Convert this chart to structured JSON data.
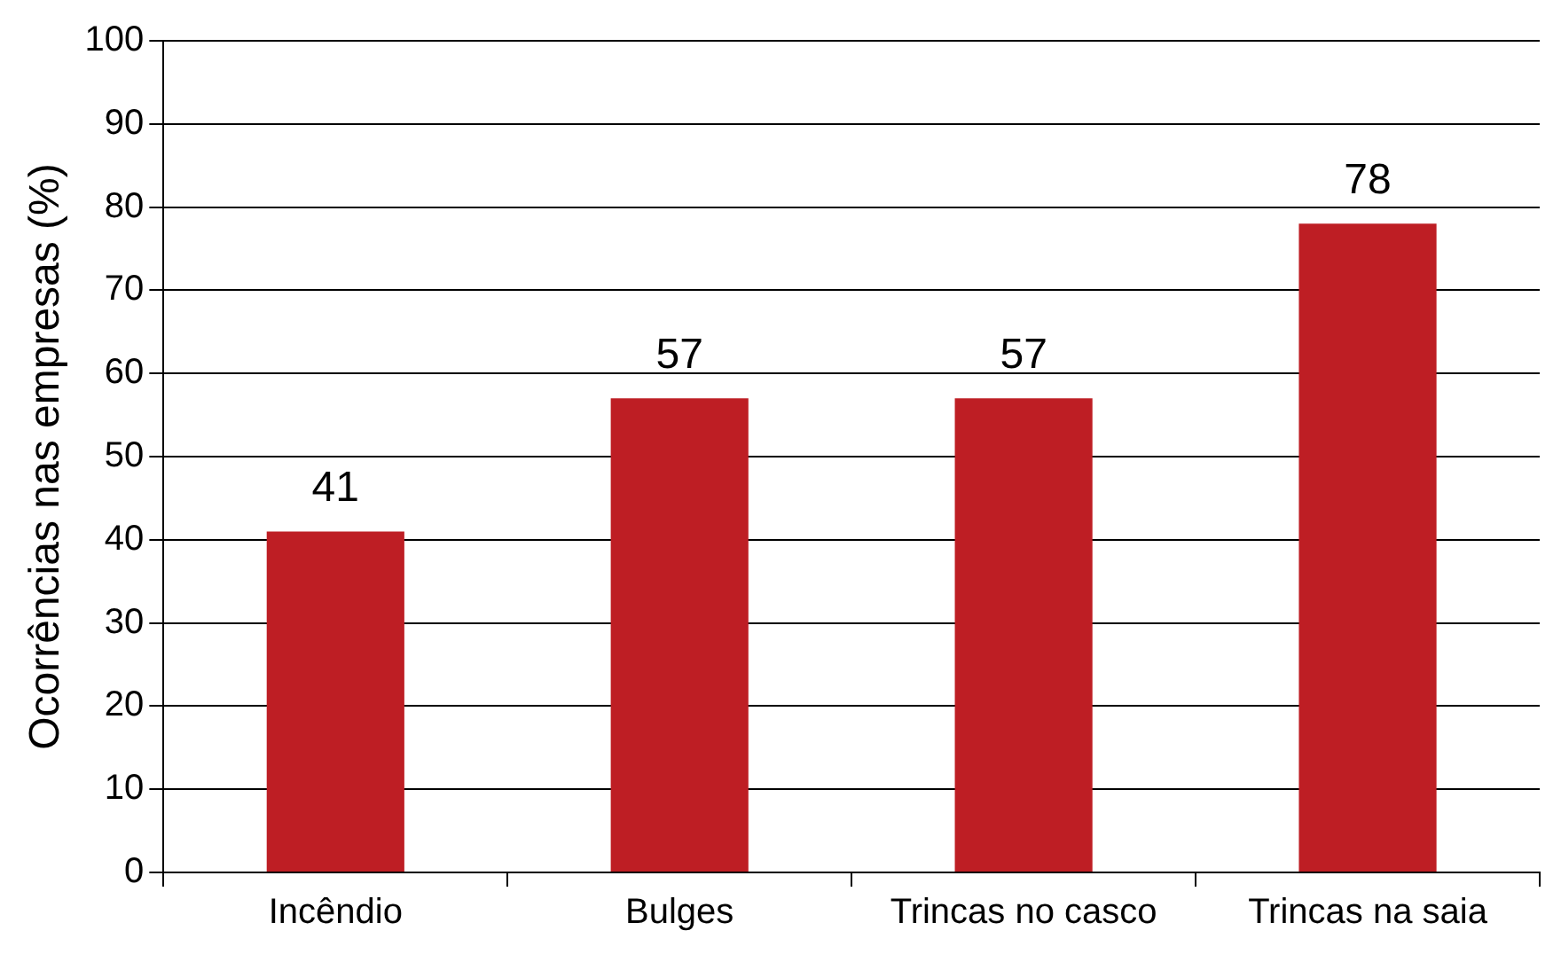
{
  "chart_data": {
    "type": "bar",
    "ylabel": "Ocorrências nas empresas (%)",
    "categories": [
      "Incêndio",
      "Bulges",
      "Trincas no casco",
      "Trincas na saia"
    ],
    "values": [
      41,
      57,
      57,
      78
    ],
    "color": "#be1e24",
    "ylim": [
      0,
      100
    ],
    "yticks": [
      0,
      10,
      20,
      30,
      40,
      50,
      60,
      70,
      80,
      90,
      100
    ],
    "grid": "y",
    "data_labels": true,
    "legend": false
  }
}
